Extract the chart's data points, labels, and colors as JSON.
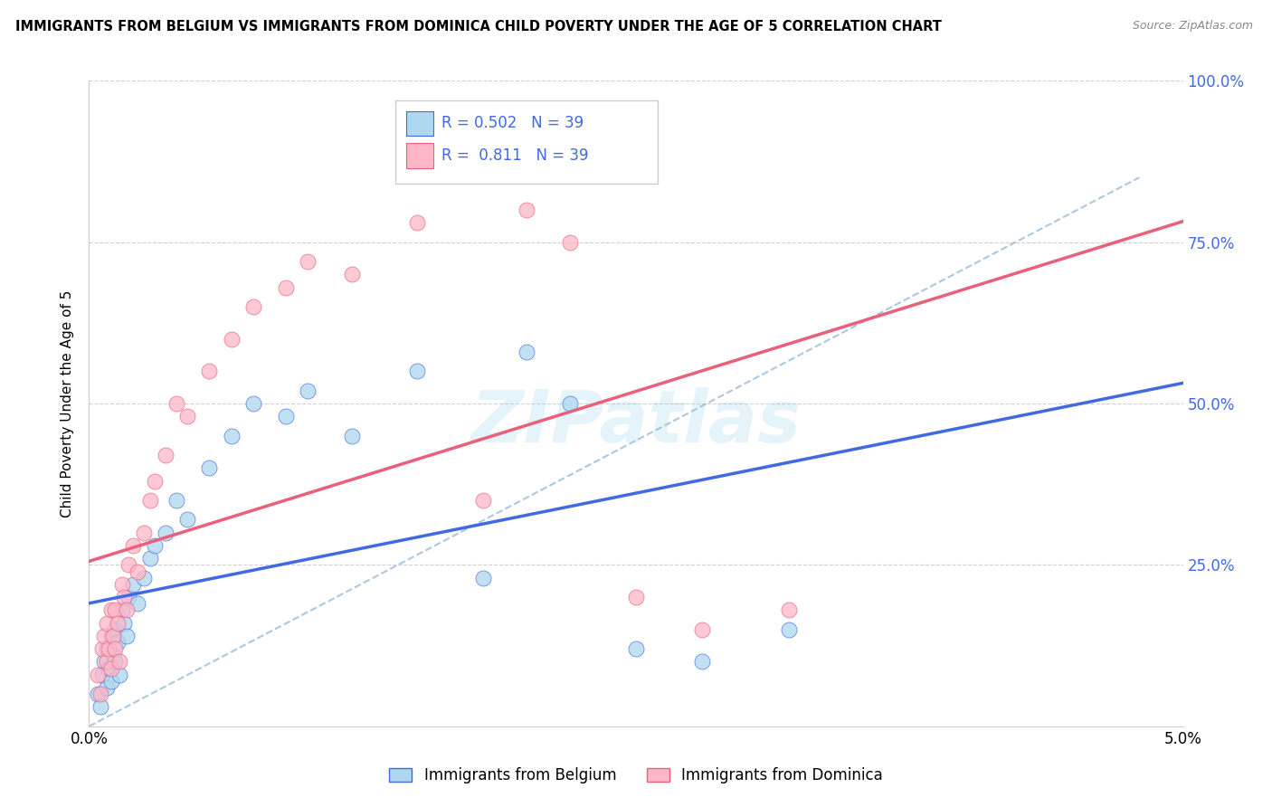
{
  "title": "IMMIGRANTS FROM BELGIUM VS IMMIGRANTS FROM DOMINICA CHILD POVERTY UNDER THE AGE OF 5 CORRELATION CHART",
  "source": "Source: ZipAtlas.com",
  "ylabel": "Child Poverty Under the Age of 5",
  "xlim": [
    0.0,
    5.0
  ],
  "ylim": [
    0.0,
    100.0
  ],
  "xtick_positions": [
    0.0,
    1.0,
    2.0,
    3.0,
    4.0,
    5.0
  ],
  "xtick_labels": [
    "0.0%",
    "",
    "",
    "",
    "",
    "5.0%"
  ],
  "ytick_positions": [
    0.0,
    25.0,
    50.0,
    75.0,
    100.0
  ],
  "ytick_labels": [
    "",
    "25.0%",
    "50.0%",
    "75.0%",
    "100.0%"
  ],
  "r_belgium": 0.502,
  "n_belgium": 39,
  "r_dominica": 0.811,
  "n_dominica": 39,
  "color_belgium": "#add8f0",
  "color_dominica": "#ffb6c8",
  "line_color_belgium": "#4169E1",
  "line_color_dominica": "#e8607a",
  "legend_label_belgium": "Immigrants from Belgium",
  "legend_label_dominica": "Immigrants from Dominica",
  "watermark": "ZIPatlas",
  "belgium_x": [
    0.04,
    0.05,
    0.06,
    0.07,
    0.08,
    0.08,
    0.09,
    0.1,
    0.1,
    0.11,
    0.12,
    0.12,
    0.13,
    0.14,
    0.15,
    0.16,
    0.17,
    0.18,
    0.2,
    0.22,
    0.25,
    0.28,
    0.3,
    0.35,
    0.4,
    0.45,
    0.55,
    0.65,
    0.75,
    0.9,
    1.0,
    1.2,
    1.5,
    1.8,
    2.0,
    2.2,
    2.5,
    2.8,
    3.2
  ],
  "belgium_y": [
    5,
    3,
    8,
    10,
    6,
    12,
    9,
    14,
    7,
    11,
    15,
    10,
    13,
    8,
    18,
    16,
    14,
    20,
    22,
    19,
    23,
    26,
    28,
    30,
    35,
    32,
    40,
    45,
    50,
    48,
    52,
    45,
    55,
    23,
    58,
    50,
    12,
    10,
    15
  ],
  "dominica_x": [
    0.04,
    0.05,
    0.06,
    0.07,
    0.08,
    0.08,
    0.09,
    0.1,
    0.1,
    0.11,
    0.12,
    0.12,
    0.13,
    0.14,
    0.15,
    0.16,
    0.17,
    0.18,
    0.2,
    0.22,
    0.25,
    0.28,
    0.3,
    0.35,
    0.4,
    0.45,
    0.55,
    0.65,
    0.75,
    0.9,
    1.0,
    1.2,
    1.5,
    1.8,
    2.0,
    2.2,
    2.5,
    2.8,
    3.2
  ],
  "dominica_y": [
    8,
    5,
    12,
    14,
    10,
    16,
    12,
    18,
    9,
    14,
    18,
    12,
    16,
    10,
    22,
    20,
    18,
    25,
    28,
    24,
    30,
    35,
    38,
    42,
    50,
    48,
    55,
    60,
    65,
    68,
    72,
    70,
    78,
    35,
    80,
    75,
    20,
    15,
    18
  ],
  "ref_line_x": [
    0.0,
    4.8
  ],
  "ref_line_y": [
    0.0,
    85.0
  ]
}
